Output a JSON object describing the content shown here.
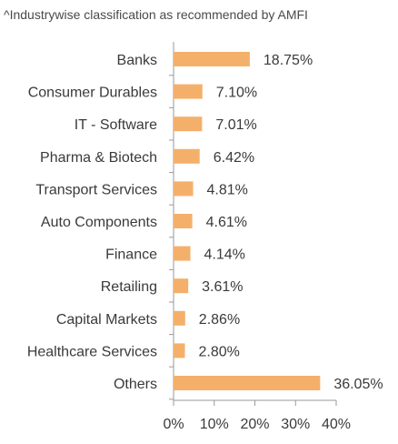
{
  "note": "^Industrywise classification as recommended by AMFI",
  "chart_data": {
    "type": "bar",
    "orientation": "horizontal",
    "title": "",
    "xlabel": "",
    "ylabel": "",
    "xlim": [
      0,
      40
    ],
    "grid": false,
    "legend": "none",
    "bar_color": "#F4B06A",
    "categories": [
      "Banks",
      "Consumer Durables",
      "IT - Software",
      "Pharma & Biotech",
      "Transport Services",
      "Auto Components",
      "Finance",
      "Retailing",
      "Capital Markets",
      "Healthcare Services",
      "Others"
    ],
    "values": [
      18.75,
      7.1,
      7.01,
      6.42,
      4.81,
      4.61,
      4.14,
      3.61,
      2.86,
      2.8,
      36.05
    ],
    "data_labels": [
      "18.75%",
      "7.10%",
      "7.01%",
      "6.42%",
      "4.81%",
      "4.61%",
      "4.14%",
      "3.61%",
      "2.86%",
      "2.80%",
      "36.05%"
    ],
    "x_ticks": [
      0,
      10,
      20,
      30,
      40
    ],
    "x_tick_labels": [
      "0%",
      "10%",
      "20%",
      "30%",
      "40%"
    ]
  }
}
